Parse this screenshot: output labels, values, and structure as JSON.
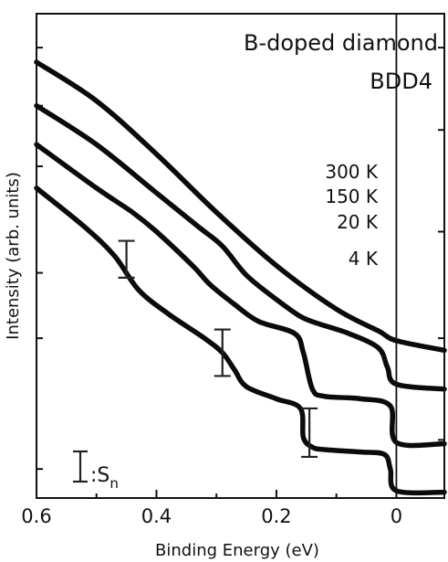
{
  "chart_data": {
    "type": "line",
    "title": "B-doped diamond",
    "subtitle": "BDD4",
    "xlabel": "Binding Energy (eV)",
    "ylabel": "Intensity (arb. units)",
    "x_reversed": true,
    "xlim": [
      0.6,
      -0.08
    ],
    "xticks": [
      "0.6",
      "0.4",
      "0.2",
      "0"
    ],
    "xtick_values": [
      0.6,
      0.4,
      0.2,
      0
    ],
    "ylim": [
      0,
      1
    ],
    "y_unit_note": "arbitrary units (y estimated as fraction of axis height, bottom = 0)",
    "vertical_line_at_x": 0,
    "series": [
      {
        "name": "300 K",
        "points": [
          [
            0.6,
            0.9
          ],
          [
            0.5,
            0.82
          ],
          [
            0.4,
            0.71
          ],
          [
            0.3,
            0.59
          ],
          [
            0.2,
            0.48
          ],
          [
            0.1,
            0.39
          ],
          [
            0.03,
            0.345
          ],
          [
            0,
            0.325
          ],
          [
            -0.08,
            0.305
          ]
        ]
      },
      {
        "name": "150 K",
        "points": [
          [
            0.6,
            0.81
          ],
          [
            0.5,
            0.73
          ],
          [
            0.4,
            0.63
          ],
          [
            0.33,
            0.56
          ],
          [
            0.29,
            0.52
          ],
          [
            0.25,
            0.46
          ],
          [
            0.2,
            0.41
          ],
          [
            0.16,
            0.375
          ],
          [
            0.13,
            0.36
          ],
          [
            0.08,
            0.34
          ],
          [
            0.03,
            0.31
          ],
          [
            0.015,
            0.27
          ],
          [
            0,
            0.235
          ],
          [
            -0.08,
            0.225
          ]
        ]
      },
      {
        "name": "20 K",
        "points": [
          [
            0.6,
            0.73
          ],
          [
            0.5,
            0.64
          ],
          [
            0.44,
            0.59
          ],
          [
            0.4,
            0.55
          ],
          [
            0.34,
            0.48
          ],
          [
            0.31,
            0.44
          ],
          [
            0.27,
            0.4
          ],
          [
            0.23,
            0.365
          ],
          [
            0.17,
            0.34
          ],
          [
            0.155,
            0.3
          ],
          [
            0.14,
            0.225
          ],
          [
            0.12,
            0.21
          ],
          [
            0.06,
            0.205
          ],
          [
            0.01,
            0.19
          ],
          [
            0,
            0.115
          ],
          [
            -0.08,
            0.112
          ]
        ]
      },
      {
        "name": "4 K",
        "points": [
          [
            0.6,
            0.64
          ],
          [
            0.52,
            0.56
          ],
          [
            0.47,
            0.5
          ],
          [
            0.43,
            0.43
          ],
          [
            0.38,
            0.38
          ],
          [
            0.32,
            0.33
          ],
          [
            0.29,
            0.3
          ],
          [
            0.27,
            0.265
          ],
          [
            0.25,
            0.23
          ],
          [
            0.2,
            0.205
          ],
          [
            0.16,
            0.185
          ],
          [
            0.155,
            0.125
          ],
          [
            0.14,
            0.105
          ],
          [
            0.12,
            0.1
          ],
          [
            0.06,
            0.095
          ],
          [
            0.02,
            0.09
          ],
          [
            0.01,
            0.06
          ],
          [
            0,
            0.015
          ],
          [
            -0.08,
            0.012
          ]
        ]
      }
    ],
    "error_bars": [
      {
        "x": 0.45,
        "y": 0.493,
        "half": 0.038
      },
      {
        "x": 0.29,
        "y": 0.3,
        "half": 0.048
      },
      {
        "x": 0.145,
        "y": 0.135,
        "half": 0.05
      }
    ],
    "error_bar_legend_label": ":S",
    "error_bar_legend_subscript": "n",
    "grid": false
  }
}
